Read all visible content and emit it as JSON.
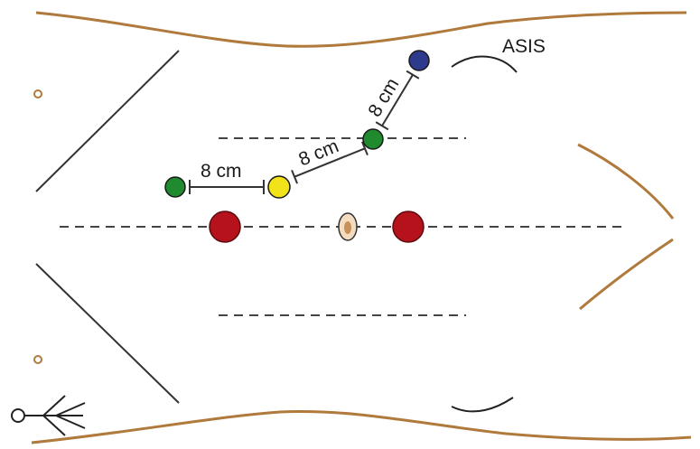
{
  "labels": {
    "asis": "ASIS",
    "distance_1": "8 cm",
    "distance_2": "8 cm",
    "distance_3": "8 cm"
  },
  "colors": {
    "body_outline": "#b07a3c",
    "line": "#333333",
    "dashed": "#444444",
    "blue_port": "#2e3a8c",
    "green_port": "#1f8a2e",
    "yellow_port": "#f2e21a",
    "red_port": "#b5121b",
    "umbilicus": "#c8915a"
  },
  "icons": {
    "orientation": "head-direction-icon"
  }
}
